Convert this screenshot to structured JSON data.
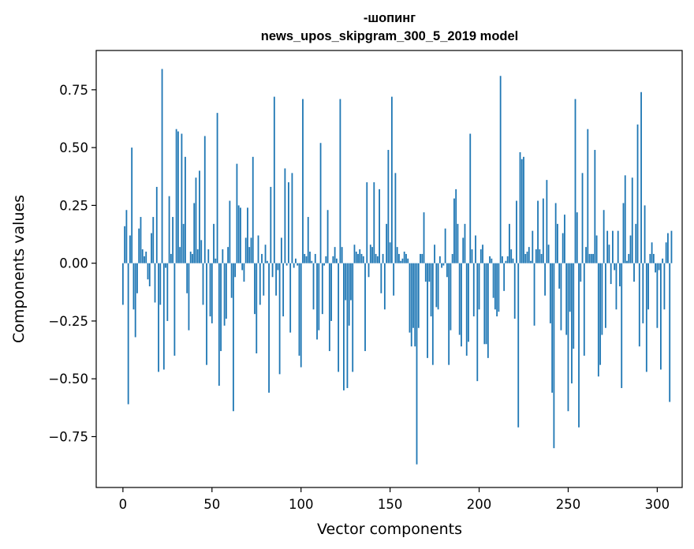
{
  "chart_data": {
    "type": "bar",
    "title": "-шопинг",
    "subtitle": "news_upos_skipgram_300_5_2019 model",
    "xlabel": "Vector components",
    "ylabel": "Components values",
    "xlim": [
      -15,
      314
    ],
    "ylim": [
      -0.97,
      0.92
    ],
    "xticks": [
      0,
      50,
      100,
      150,
      200,
      250,
      300
    ],
    "xtick_labels": [
      "0",
      "50",
      "100",
      "150",
      "200",
      "250",
      "300"
    ],
    "yticks": [
      0.75,
      0.5,
      0.25,
      0.0,
      -0.25,
      -0.5,
      -0.75
    ],
    "ytick_labels": [
      "0.75",
      "0.50",
      "0.25",
      "0.00",
      "−0.25",
      "−0.50",
      "−0.75"
    ],
    "grid": false,
    "color": "#1f77b4",
    "values": [
      -0.18,
      0.16,
      0.23,
      -0.61,
      0.12,
      0.5,
      -0.2,
      -0.32,
      -0.13,
      0.15,
      0.2,
      0.06,
      0.03,
      0.05,
      -0.07,
      -0.1,
      0.13,
      0.2,
      -0.17,
      0.33,
      -0.47,
      -0.18,
      0.84,
      -0.46,
      -0.02,
      -0.25,
      0.29,
      0.04,
      0.2,
      -0.4,
      0.58,
      0.57,
      0.07,
      0.56,
      0.17,
      0.46,
      -0.13,
      -0.29,
      0.05,
      0.04,
      0.26,
      0.37,
      0.06,
      0.4,
      0.1,
      -0.18,
      0.55,
      -0.44,
      0.06,
      -0.23,
      -0.26,
      0.17,
      0.02,
      0.65,
      -0.53,
      -0.38,
      0.06,
      -0.27,
      -0.24,
      0.07,
      0.27,
      -0.15,
      -0.64,
      -0.06,
      0.43,
      0.25,
      0.24,
      -0.03,
      -0.08,
      0.11,
      0.24,
      0.07,
      0.11,
      0.46,
      -0.22,
      -0.39,
      0.12,
      -0.18,
      0.04,
      -0.14,
      0.08,
      0.01,
      -0.56,
      0.33,
      -0.06,
      0.72,
      -0.14,
      -0.03,
      -0.48,
      0.11,
      -0.23,
      0.41,
      -0.01,
      0.35,
      -0.3,
      0.39,
      -0.02,
      0.02,
      -0.01,
      -0.4,
      -0.45,
      0.71,
      0.04,
      0.03,
      0.2,
      0.05,
      0.01,
      -0.2,
      0.04,
      -0.33,
      -0.29,
      0.52,
      -0.22,
      -0.01,
      0.03,
      0.23,
      -0.38,
      -0.25,
      0.03,
      0.07,
      0.02,
      -0.47,
      0.71,
      0.07,
      -0.55,
      -0.16,
      -0.54,
      -0.27,
      -0.16,
      -0.47,
      0.08,
      0.05,
      0.04,
      0.06,
      0.04,
      0.03,
      -0.38,
      0.35,
      -0.06,
      0.08,
      0.07,
      0.35,
      0.04,
      0.03,
      0.32,
      -0.13,
      0.04,
      -0.2,
      0.17,
      0.49,
      0.09,
      0.72,
      -0.14,
      0.39,
      0.07,
      0.04,
      0.01,
      0.02,
      0.05,
      0.04,
      0.02,
      -0.3,
      -0.36,
      -0.28,
      -0.36,
      -0.87,
      -0.28,
      0.04,
      0.04,
      0.22,
      -0.08,
      -0.41,
      -0.08,
      -0.23,
      -0.44,
      0.08,
      -0.19,
      -0.2,
      0.03,
      -0.02,
      -0.01,
      0.15,
      -0.06,
      -0.44,
      -0.29,
      0.04,
      0.28,
      0.32,
      0.17,
      -0.31,
      -0.36,
      0.11,
      0.17,
      -0.4,
      -0.34,
      0.56,
      0.06,
      -0.23,
      0.12,
      -0.51,
      -0.2,
      0.06,
      0.08,
      -0.35,
      -0.35,
      -0.41,
      0.03,
      0.02,
      -0.15,
      -0.2,
      -0.23,
      -0.21,
      0.81,
      0.03,
      -0.12,
      0.01,
      0.03,
      0.17,
      0.06,
      0.02,
      -0.24,
      0.27,
      -0.71,
      0.48,
      0.45,
      0.46,
      0.04,
      0.05,
      0.07,
      0.01,
      0.14,
      -0.27,
      0.06,
      0.27,
      0.06,
      0.04,
      0.28,
      -0.14,
      0.36,
      0.08,
      -0.26,
      -0.56,
      -0.8,
      0.26,
      0.17,
      -0.11,
      -0.29,
      0.13,
      0.21,
      -0.31,
      -0.64,
      -0.21,
      -0.52,
      -0.37,
      0.71,
      0.22,
      -0.71,
      -0.08,
      0.39,
      -0.4,
      0.07,
      0.58,
      0.04,
      0.04,
      0.04,
      0.49,
      0.12,
      -0.49,
      -0.44,
      -0.31,
      0.23,
      -0.28,
      0.14,
      0.08,
      -0.09,
      0.14,
      -0.03,
      -0.2,
      0.14,
      -0.1,
      -0.54,
      0.26,
      0.38,
      0.01,
      0.04,
      0.12,
      0.37,
      -0.08,
      0.17,
      0.6,
      -0.36,
      0.74,
      -0.26,
      0.25,
      -0.47,
      -0.2,
      0.04,
      0.09,
      0.04,
      -0.04,
      -0.28,
      -0.03,
      -0.46,
      0.02,
      -0.2,
      0.09,
      0.13,
      -0.6,
      0.14
    ]
  }
}
